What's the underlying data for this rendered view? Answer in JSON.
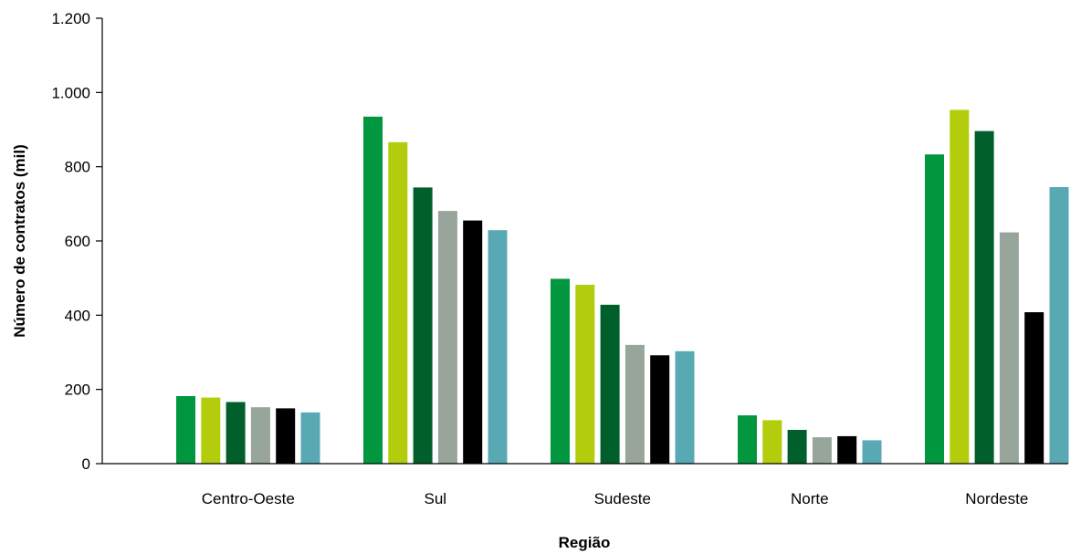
{
  "chart_data": {
    "type": "bar",
    "title": "",
    "xlabel": "Região",
    "ylabel": "Número de contratos (mil)",
    "ylim": [
      0,
      1200
    ],
    "yticks": [
      0,
      200,
      400,
      600,
      800,
      1000,
      1200
    ],
    "ytick_labels": [
      "0",
      "200",
      "400",
      "600",
      "800",
      "1.000",
      "1.200"
    ],
    "grid": false,
    "legend": "none",
    "categories": [
      "Centro-Oeste",
      "Sul",
      "Sudeste",
      "Norte",
      "Nordeste"
    ],
    "series": [
      {
        "color": "#00973f",
        "values": [
          182,
          935,
          498,
          130,
          833
        ]
      },
      {
        "color": "#b3cc0c",
        "values": [
          178,
          866,
          482,
          117,
          953
        ]
      },
      {
        "color": "#005f2b",
        "values": [
          166,
          744,
          428,
          91,
          896
        ]
      },
      {
        "color": "#98a59a",
        "values": [
          152,
          681,
          320,
          71,
          623
        ]
      },
      {
        "color": "#000000",
        "values": [
          149,
          655,
          292,
          74,
          408
        ]
      },
      {
        "color": "#59a9b5",
        "values": [
          138,
          629,
          303,
          63,
          745
        ]
      }
    ]
  }
}
